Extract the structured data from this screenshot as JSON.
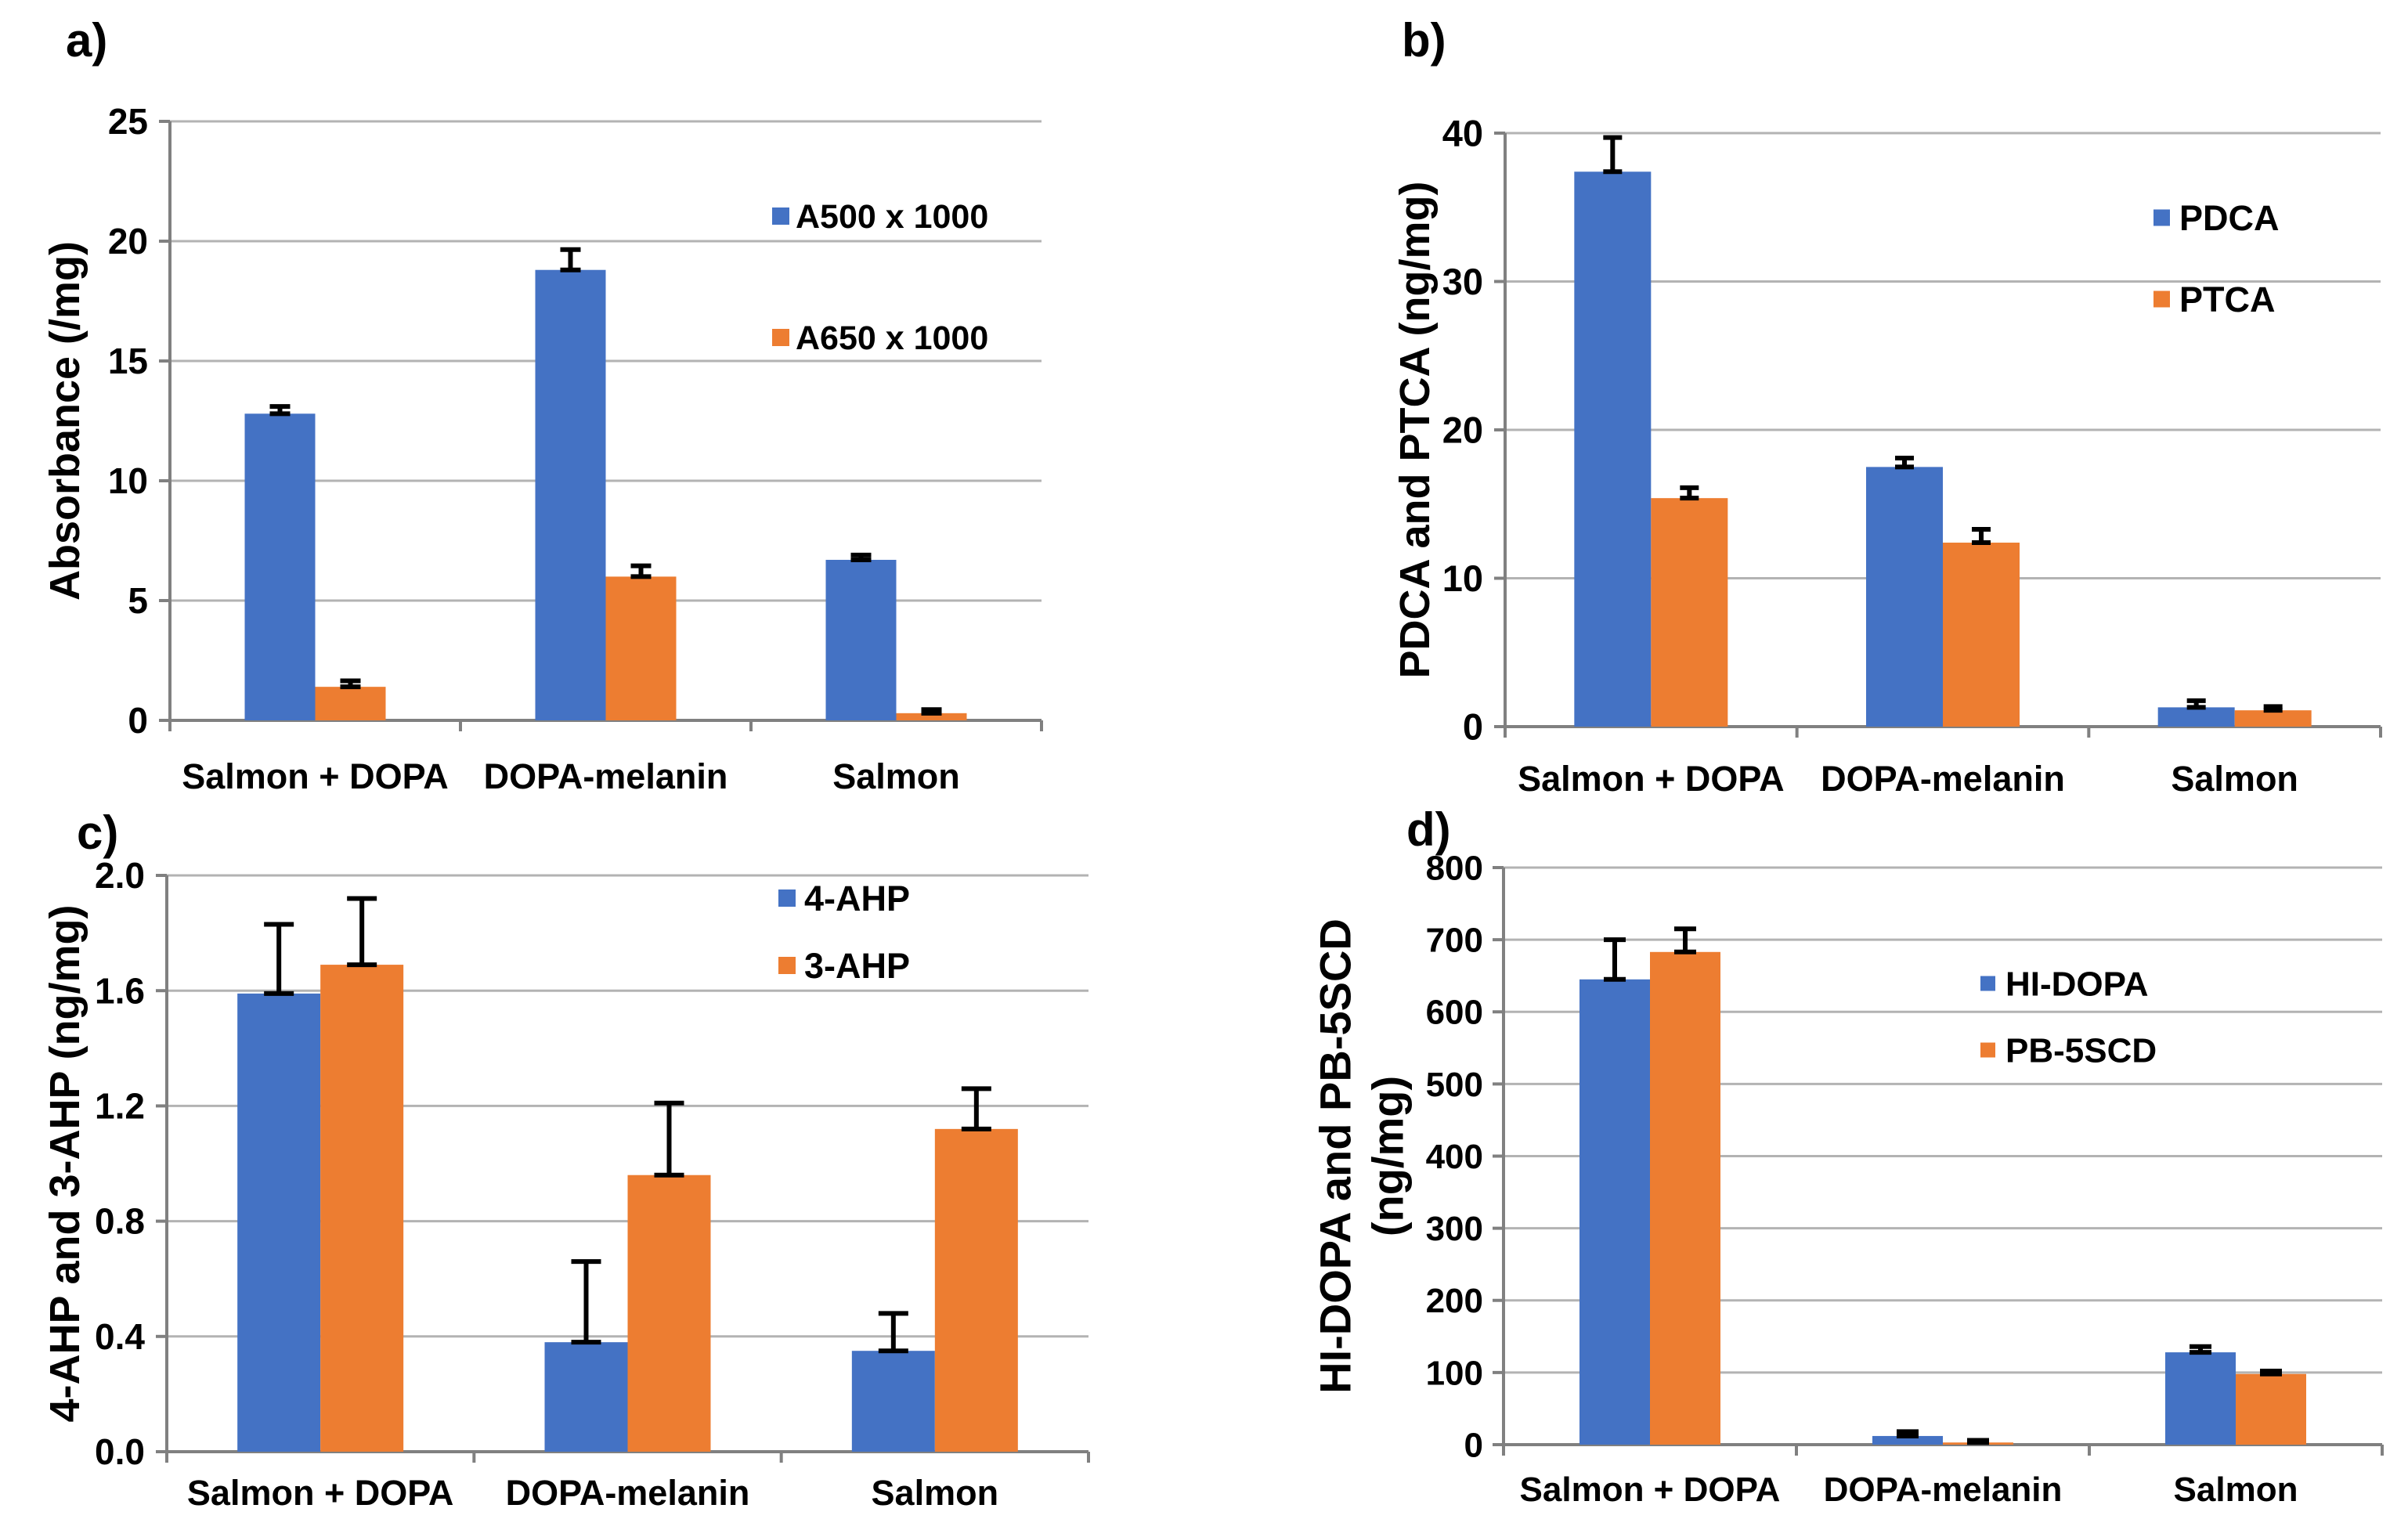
{
  "figure": {
    "background": "#FFFFFF",
    "colors": {
      "bar_blue": "#4472C4",
      "bar_orange": "#ED7D31",
      "grid": "#B3B3B3",
      "axis": "#808080",
      "error_bar": "#000000",
      "text": "#000000"
    }
  },
  "chart_data": [
    {
      "id": "a",
      "panel_label": "a)",
      "type": "bar",
      "title": "",
      "xlabel": "",
      "ylabel": "Absorbance (/mg)",
      "ylabel_lines": [
        "Absorbance  (/mg)"
      ],
      "categories": [
        "Salmon + DOPA",
        "DOPA-melanin",
        "Salmon"
      ],
      "series": [
        {
          "name": "A500 x 1000",
          "color": "blue",
          "values": [
            12.8,
            18.8,
            6.7
          ],
          "errors": [
            0.3,
            0.85,
            0.2
          ]
        },
        {
          "name": "A650 x 1000",
          "color": "orange",
          "values": [
            1.4,
            6.0,
            0.3
          ],
          "errors": [
            0.25,
            0.45,
            0.15
          ]
        }
      ],
      "ylim": [
        0,
        25
      ],
      "ytick_labels": [
        "0",
        "5",
        "10",
        "15",
        "20",
        "25"
      ],
      "grid": true,
      "legend_position": "inside-upper-right"
    },
    {
      "id": "b",
      "panel_label": "b)",
      "type": "bar",
      "title": "",
      "xlabel": "",
      "ylabel": "PDCA and PTCA (ng/mg)",
      "ylabel_lines": [
        "PDCA and PTCA (ng/mg)"
      ],
      "categories": [
        "Salmon + DOPA",
        "DOPA-melanin",
        "Salmon"
      ],
      "series": [
        {
          "name": "PDCA",
          "color": "blue",
          "values": [
            37.4,
            17.5,
            1.3
          ],
          "errors": [
            2.3,
            0.6,
            0.45
          ]
        },
        {
          "name": "PTCA",
          "color": "orange",
          "values": [
            15.4,
            12.4,
            1.1
          ],
          "errors": [
            0.7,
            0.9,
            0.25
          ]
        }
      ],
      "ylim": [
        0,
        40
      ],
      "ytick_labels": [
        "0",
        "10",
        "20",
        "30",
        "40"
      ],
      "grid": true,
      "legend_position": "inside-upper-right"
    },
    {
      "id": "c",
      "panel_label": "c)",
      "type": "bar",
      "title": "",
      "xlabel": "",
      "ylabel": "4-AHP and 3-AHP (ng/mg)",
      "ylabel_lines": [
        "4-AHP and 3-AHP (ng/mg)"
      ],
      "categories": [
        "Salmon + DOPA",
        "DOPA-melanin",
        "Salmon"
      ],
      "series": [
        {
          "name": "4-AHP",
          "color": "blue",
          "values": [
            1.59,
            0.38,
            0.35
          ],
          "errors": [
            0.24,
            0.28,
            0.13
          ]
        },
        {
          "name": "3-AHP",
          "color": "orange",
          "values": [
            1.69,
            0.96,
            1.12
          ],
          "errors": [
            0.23,
            0.25,
            0.14
          ]
        }
      ],
      "ylim": [
        0,
        2.0
      ],
      "ytick_labels": [
        "0.0",
        "0.4",
        "0.8",
        "1.2",
        "1.6",
        "2.0"
      ],
      "grid": true,
      "legend_position": "inside-upper-right"
    },
    {
      "id": "d",
      "panel_label": "d)",
      "type": "bar",
      "title": "",
      "xlabel": "",
      "ylabel": "HI-DOPA and PB-5SCD (ng/mg)",
      "ylabel_lines": [
        "HI-DOPA and PB-5SCD",
        "(ng/mg)"
      ],
      "categories": [
        "Salmon + DOPA",
        "DOPA-melanin",
        "Salmon"
      ],
      "series": [
        {
          "name": "HI-DOPA",
          "color": "blue",
          "values": [
            645,
            12,
            128
          ],
          "errors": [
            55,
            6,
            8
          ]
        },
        {
          "name": "PB-5SCD",
          "color": "orange",
          "values": [
            683,
            3,
            98
          ],
          "errors": [
            32,
            3,
            4
          ]
        }
      ],
      "ylim": [
        0,
        800
      ],
      "ytick_labels": [
        "0",
        "100",
        "200",
        "300",
        "400",
        "500",
        "600",
        "700",
        "800"
      ],
      "grid": true,
      "legend_position": "inside-middle-right"
    }
  ]
}
